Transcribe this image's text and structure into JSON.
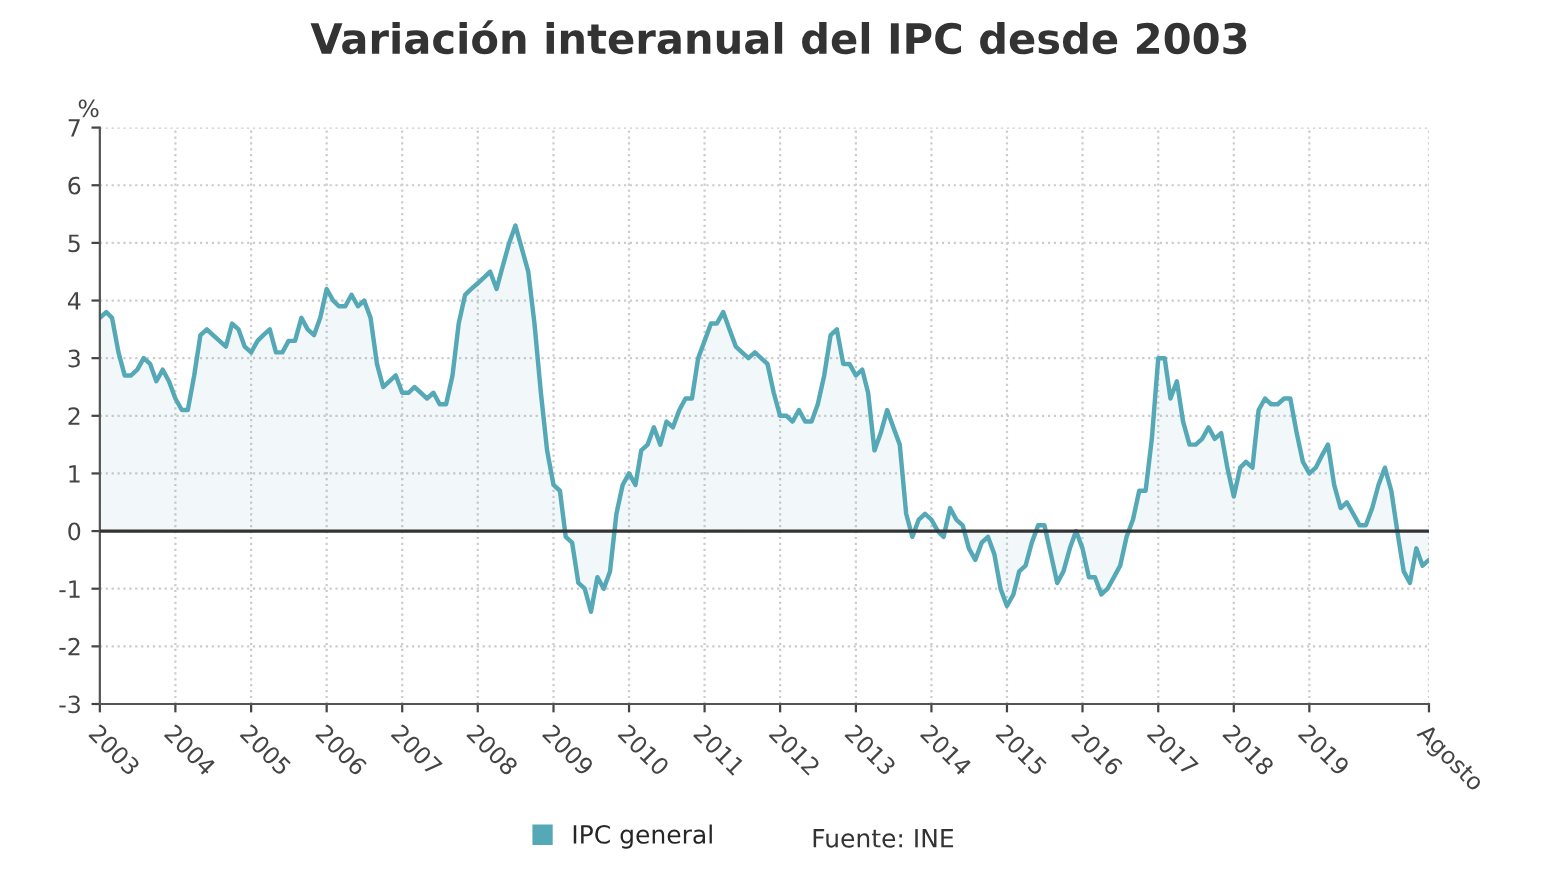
{
  "chart_data": {
    "type": "area",
    "title": "Variación interanual del IPC desde 2003",
    "ylabel": "%",
    "x": [
      "2003-01",
      "2003-02",
      "2003-03",
      "2003-04",
      "2003-05",
      "2003-06",
      "2003-07",
      "2003-08",
      "2003-09",
      "2003-10",
      "2003-11",
      "2003-12",
      "2004-01",
      "2004-02",
      "2004-03",
      "2004-04",
      "2004-05",
      "2004-06",
      "2004-07",
      "2004-08",
      "2004-09",
      "2004-10",
      "2004-11",
      "2004-12",
      "2005-01",
      "2005-02",
      "2005-03",
      "2005-04",
      "2005-05",
      "2005-06",
      "2005-07",
      "2005-08",
      "2005-09",
      "2005-10",
      "2005-11",
      "2005-12",
      "2006-01",
      "2006-02",
      "2006-03",
      "2006-04",
      "2006-05",
      "2006-06",
      "2006-07",
      "2006-08",
      "2006-09",
      "2006-10",
      "2006-11",
      "2006-12",
      "2007-01",
      "2007-02",
      "2007-03",
      "2007-04",
      "2007-05",
      "2007-06",
      "2007-07",
      "2007-08",
      "2007-09",
      "2007-10",
      "2007-11",
      "2007-12",
      "2008-01",
      "2008-02",
      "2008-03",
      "2008-04",
      "2008-05",
      "2008-06",
      "2008-07",
      "2008-08",
      "2008-09",
      "2008-10",
      "2008-11",
      "2008-12",
      "2009-01",
      "2009-02",
      "2009-03",
      "2009-04",
      "2009-05",
      "2009-06",
      "2009-07",
      "2009-08",
      "2009-09",
      "2009-10",
      "2009-11",
      "2009-12",
      "2010-01",
      "2010-02",
      "2010-03",
      "2010-04",
      "2010-05",
      "2010-06",
      "2010-07",
      "2010-08",
      "2010-09",
      "2010-10",
      "2010-11",
      "2010-12",
      "2011-01",
      "2011-02",
      "2011-03",
      "2011-04",
      "2011-05",
      "2011-06",
      "2011-07",
      "2011-08",
      "2011-09",
      "2011-10",
      "2011-11",
      "2011-12",
      "2012-01",
      "2012-02",
      "2012-03",
      "2012-04",
      "2012-05",
      "2012-06",
      "2012-07",
      "2012-08",
      "2012-09",
      "2012-10",
      "2012-11",
      "2012-12",
      "2013-01",
      "2013-02",
      "2013-03",
      "2013-04",
      "2013-05",
      "2013-06",
      "2013-07",
      "2013-08",
      "2013-09",
      "2013-10",
      "2013-11",
      "2013-12",
      "2014-01",
      "2014-02",
      "2014-03",
      "2014-04",
      "2014-05",
      "2014-06",
      "2014-07",
      "2014-08",
      "2014-09",
      "2014-10",
      "2014-11",
      "2014-12",
      "2015-01",
      "2015-02",
      "2015-03",
      "2015-04",
      "2015-05",
      "2015-06",
      "2015-07",
      "2015-08",
      "2015-09",
      "2015-10",
      "2015-11",
      "2015-12",
      "2016-01",
      "2016-02",
      "2016-03",
      "2016-04",
      "2016-05",
      "2016-06",
      "2016-07",
      "2016-08",
      "2016-09",
      "2016-10",
      "2016-11",
      "2016-12",
      "2017-01",
      "2017-02",
      "2017-03",
      "2017-04",
      "2017-05",
      "2017-06",
      "2017-07",
      "2017-08",
      "2017-09",
      "2017-10",
      "2017-11",
      "2017-12",
      "2018-01",
      "2018-02",
      "2018-03",
      "2018-04",
      "2018-05",
      "2018-06",
      "2018-07",
      "2018-08",
      "2018-09",
      "2018-10",
      "2018-11",
      "2018-12",
      "2019-01",
      "2019-02",
      "2019-03",
      "2019-04",
      "2019-05",
      "2019-06",
      "2019-07",
      "2019-08",
      "2019-09",
      "2019-10",
      "2019-11",
      "2019-12",
      "2020-01",
      "2020-02",
      "2020-03",
      "2020-04",
      "2020-05",
      "2020-06",
      "2020-07",
      "2020-08"
    ],
    "series": [
      {
        "name": "IPC general",
        "color": "#55a9b6",
        "values": [
          3.7,
          3.8,
          3.7,
          3.1,
          2.7,
          2.7,
          2.8,
          3.0,
          2.9,
          2.6,
          2.8,
          2.6,
          2.3,
          2.1,
          2.1,
          2.7,
          3.4,
          3.5,
          3.4,
          3.3,
          3.2,
          3.6,
          3.5,
          3.2,
          3.1,
          3.3,
          3.4,
          3.5,
          3.1,
          3.1,
          3.3,
          3.3,
          3.7,
          3.5,
          3.4,
          3.7,
          4.2,
          4.0,
          3.9,
          3.9,
          4.1,
          3.9,
          4.0,
          3.7,
          2.9,
          2.5,
          2.6,
          2.7,
          2.4,
          2.4,
          2.5,
          2.4,
          2.3,
          2.4,
          2.2,
          2.2,
          2.7,
          3.6,
          4.1,
          4.2,
          4.3,
          4.4,
          4.5,
          4.2,
          4.6,
          5.0,
          5.3,
          4.9,
          4.5,
          3.6,
          2.4,
          1.4,
          0.8,
          0.7,
          -0.1,
          -0.2,
          -0.9,
          -1.0,
          -1.4,
          -0.8,
          -1.0,
          -0.7,
          0.3,
          0.8,
          1.0,
          0.8,
          1.4,
          1.5,
          1.8,
          1.5,
          1.9,
          1.8,
          2.1,
          2.3,
          2.3,
          3.0,
          3.3,
          3.6,
          3.6,
          3.8,
          3.5,
          3.2,
          3.1,
          3.0,
          3.1,
          3.0,
          2.9,
          2.4,
          2.0,
          2.0,
          1.9,
          2.1,
          1.9,
          1.9,
          2.2,
          2.7,
          3.4,
          3.5,
          2.9,
          2.9,
          2.7,
          2.8,
          2.4,
          1.4,
          1.7,
          2.1,
          1.8,
          1.5,
          0.3,
          -0.1,
          0.2,
          0.3,
          0.2,
          0.0,
          -0.1,
          0.4,
          0.2,
          0.1,
          -0.3,
          -0.5,
          -0.2,
          -0.1,
          -0.4,
          -1.0,
          -1.3,
          -1.1,
          -0.7,
          -0.6,
          -0.2,
          0.1,
          0.1,
          -0.4,
          -0.9,
          -0.7,
          -0.3,
          0.0,
          -0.3,
          -0.8,
          -0.8,
          -1.1,
          -1.0,
          -0.8,
          -0.6,
          -0.1,
          0.2,
          0.7,
          0.7,
          1.6,
          3.0,
          3.0,
          2.3,
          2.6,
          1.9,
          1.5,
          1.5,
          1.6,
          1.8,
          1.6,
          1.7,
          1.1,
          0.6,
          1.1,
          1.2,
          1.1,
          2.1,
          2.3,
          2.2,
          2.2,
          2.3,
          2.3,
          1.7,
          1.2,
          1.0,
          1.1,
          1.3,
          1.5,
          0.8,
          0.4,
          0.5,
          0.3,
          0.1,
          0.1,
          0.4,
          0.8,
          1.1,
          0.7,
          0.0,
          -0.7,
          -0.9,
          -0.3,
          -0.6,
          -0.5
        ]
      }
    ],
    "xlim": [
      "2003-01",
      "2020-08"
    ],
    "xticks": [
      "2003",
      "2004",
      "2005",
      "2006",
      "2007",
      "2008",
      "2009",
      "2010",
      "2011",
      "2012",
      "2013",
      "2014",
      "2015",
      "2016",
      "2017",
      "2018",
      "2019",
      {
        "value": "2020-08",
        "label": "Agosto"
      }
    ],
    "ylim": [
      -3,
      7
    ],
    "yticks": [
      -3,
      -2,
      -1,
      0,
      1,
      2,
      3,
      4,
      5,
      6,
      7
    ],
    "ref_lines": [
      {
        "axis": "y",
        "value": 0,
        "color": "#333333"
      }
    ],
    "grid": true,
    "legend": "bottom",
    "annotations": [
      "Fuente: INE"
    ]
  }
}
